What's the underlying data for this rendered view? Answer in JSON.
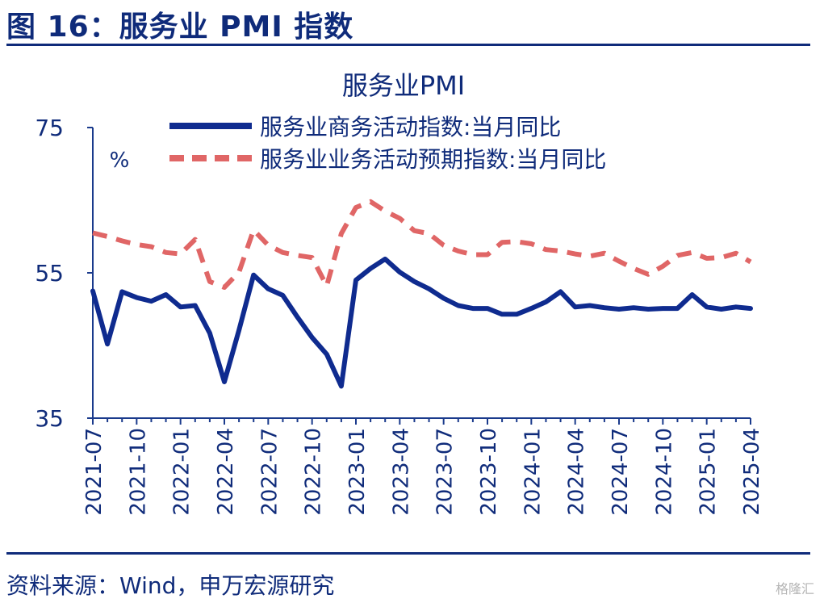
{
  "figure_title": "图 16：服务业 PMI 指数",
  "source": "资料来源：Wind，申万宏源研究",
  "watermark": "格隆汇",
  "chart_data": {
    "type": "line",
    "title": "服务业PMI",
    "unit_label": "%",
    "ylim": [
      35,
      75
    ],
    "yticks": [
      35,
      55,
      75
    ],
    "x_tick_labels": [
      "2021-07",
      "2021-10",
      "2022-01",
      "2022-04",
      "2022-07",
      "2022-10",
      "2023-01",
      "2023-04",
      "2023-07",
      "2023-10",
      "2024-01",
      "2024-04",
      "2024-07",
      "2024-10",
      "2025-01",
      "2025-04"
    ],
    "x": [
      "2021-07",
      "2021-08",
      "2021-09",
      "2021-10",
      "2021-11",
      "2021-12",
      "2022-01",
      "2022-02",
      "2022-03",
      "2022-04",
      "2022-05",
      "2022-06",
      "2022-07",
      "2022-08",
      "2022-09",
      "2022-10",
      "2022-11",
      "2022-12",
      "2023-01",
      "2023-02",
      "2023-03",
      "2023-04",
      "2023-05",
      "2023-06",
      "2023-07",
      "2023-08",
      "2023-09",
      "2023-10",
      "2023-11",
      "2023-12",
      "2024-01",
      "2024-02",
      "2024-03",
      "2024-04",
      "2024-05",
      "2024-06",
      "2024-07",
      "2024-08",
      "2024-09",
      "2024-10",
      "2024-11",
      "2024-12",
      "2025-01",
      "2025-02",
      "2025-03",
      "2025-04"
    ],
    "series": [
      {
        "name": "服务业商务活动指数:当月同比",
        "color": "#0f2b8f",
        "style": "solid",
        "values": [
          52.5,
          45.2,
          52.4,
          51.6,
          51.1,
          52.0,
          50.3,
          50.5,
          46.7,
          40.0,
          47.1,
          54.7,
          52.8,
          51.9,
          48.9,
          46.1,
          43.8,
          39.4,
          54.0,
          55.6,
          56.9,
          55.1,
          53.8,
          52.8,
          51.5,
          50.5,
          50.1,
          50.1,
          49.3,
          49.3,
          50.1,
          51.0,
          52.4,
          50.3,
          50.5,
          50.2,
          50.0,
          50.2,
          50.0,
          50.1,
          50.1,
          52.0,
          50.3,
          50.0,
          50.3,
          50.1
        ]
      },
      {
        "name": "服务业业务活动预期指数:当月同比",
        "color": "#e06666",
        "style": "dashed",
        "values": [
          60.5,
          60.0,
          59.4,
          58.9,
          58.6,
          57.8,
          57.6,
          59.6,
          53.8,
          53.0,
          55.1,
          60.9,
          58.8,
          57.8,
          57.4,
          57.1,
          53.2,
          60.4,
          64.0,
          64.8,
          63.5,
          62.5,
          60.8,
          60.4,
          58.8,
          58.0,
          57.5,
          57.5,
          59.2,
          59.3,
          59.0,
          58.2,
          58.0,
          57.6,
          57.3,
          57.7,
          56.6,
          55.6,
          54.8,
          55.9,
          57.4,
          57.8,
          57.0,
          57.1,
          57.7,
          56.5
        ]
      }
    ],
    "grid": false,
    "legend_position": "top"
  }
}
